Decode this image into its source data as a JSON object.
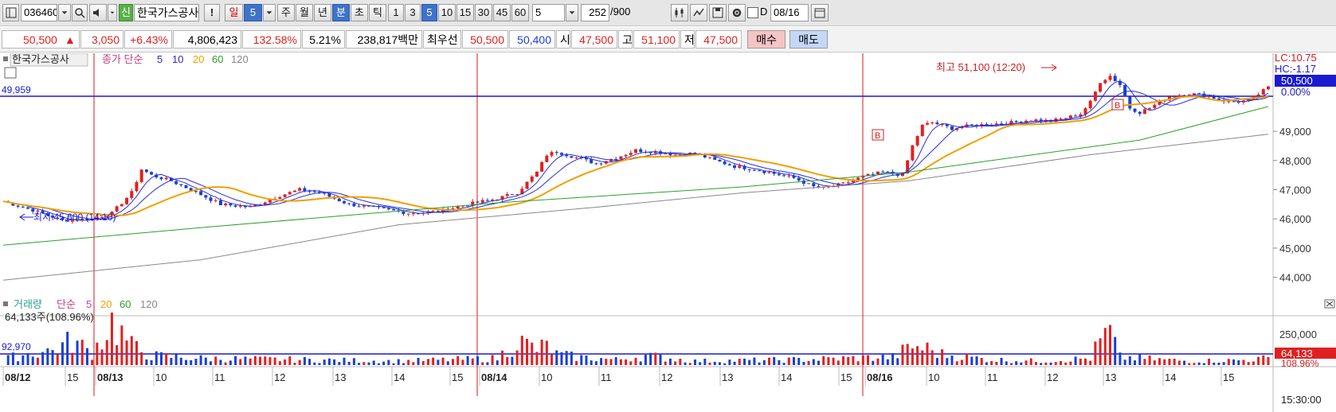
{
  "toolbar": {
    "code": "036460",
    "shin": "신",
    "name": "한국가스공사",
    "excl": "!",
    "period_day": "일",
    "period_day_n": "5",
    "period_week": "주",
    "period_month": "월",
    "period_year": "년",
    "period_min": "분",
    "period_sec": "초",
    "period_tick": "틱",
    "intervals": [
      "1",
      "3",
      "5",
      "10",
      "15",
      "30",
      "45",
      "60"
    ],
    "interval_value": "5",
    "count": "252",
    "count_max": "/900",
    "date_label": "D",
    "date_value": "08/16"
  },
  "quote": {
    "price": "50,500",
    "arrow": "▲",
    "change": "3,050",
    "change_pct": "+6.43%",
    "volume": "4,806,423",
    "vol_ratio": "132.58%",
    "turnover": "5.21%",
    "amount": "238,817백만",
    "best_label": "최우선",
    "ask": "50,500",
    "bid": "50,400",
    "open_label": "시",
    "open": "47,500",
    "high_label": "고",
    "high": "51,100",
    "low_label": "저",
    "low": "47,500",
    "buy_label": "매수",
    "sell_label": "매도"
  },
  "price_legend": {
    "name": "한국가스공사",
    "close_ma": "종가 단순",
    "periods": [
      "5",
      "10",
      "20",
      "60",
      "120"
    ],
    "colors": [
      "#2a2fd6",
      "#2a2fd6",
      "#f0a000",
      "#2aa02a",
      "#888888"
    ]
  },
  "volume_legend": {
    "name": "거래량",
    "ma": "단순",
    "periods": [
      "5",
      "20",
      "60",
      "120"
    ],
    "value_text": "64,133주(108.96%)",
    "ref_value": "92,970"
  },
  "annotations": {
    "high_text": "최고 51,100 (12:20)",
    "low_text": "최저 45,600 (14:10)",
    "ref_price": "49,959",
    "signal_b": "B"
  },
  "right_panel": {
    "lc": "LC:10.75",
    "hc": "HC:-1.17",
    "price_tag": "50,500",
    "pct_tag": "0.00%",
    "vol_tag": "64,133",
    "vol_pct_tag": "108.96%",
    "time_label": "15:30:00"
  },
  "chart_data": {
    "type": "candlestick",
    "price_ticks": [
      "49,000",
      "48,000",
      "47,000",
      "46,000",
      "45,000",
      "44,000"
    ],
    "volume_ticks": [
      "250,000"
    ],
    "x_labels": [
      "08/12",
      "15",
      "08/13",
      "10",
      "11",
      "12",
      "13",
      "14",
      "15",
      "08/14",
      "10",
      "11",
      "12",
      "13",
      "14",
      "15",
      "08/16",
      "10",
      "11",
      "12",
      "13",
      "14",
      "15"
    ],
    "x_label_date_flags": [
      true,
      false,
      true,
      false,
      false,
      false,
      false,
      false,
      false,
      true,
      false,
      false,
      false,
      false,
      false,
      false,
      true,
      false,
      false,
      false,
      false,
      false,
      false
    ],
    "ylim": [
      43500,
      51400
    ],
    "series": [
      {
        "name": "5",
        "color": "#2a2fd6"
      },
      {
        "name": "10",
        "color": "#2a2fd6"
      },
      {
        "name": "20",
        "color": "#f0a000"
      },
      {
        "name": "60",
        "color": "#2aa02a"
      },
      {
        "name": "120",
        "color": "#888888"
      }
    ],
    "close_path": [
      [
        0,
        46600
      ],
      [
        6,
        46300
      ],
      [
        12,
        45950
      ],
      [
        18,
        46000
      ],
      [
        22,
        46200
      ],
      [
        26,
        46900
      ],
      [
        28,
        47700
      ],
      [
        30,
        47500
      ],
      [
        34,
        47300
      ],
      [
        38,
        47000
      ],
      [
        44,
        46500
      ],
      [
        50,
        46400
      ],
      [
        56,
        46800
      ],
      [
        60,
        47000
      ],
      [
        64,
        46900
      ],
      [
        70,
        46500
      ],
      [
        76,
        46350
      ],
      [
        82,
        46200
      ],
      [
        88,
        46250
      ],
      [
        94,
        46500
      ],
      [
        100,
        46700
      ],
      [
        104,
        46900
      ],
      [
        108,
        47600
      ],
      [
        110,
        48200
      ],
      [
        112,
        48300
      ],
      [
        116,
        48100
      ],
      [
        120,
        47900
      ],
      [
        124,
        48100
      ],
      [
        128,
        48350
      ],
      [
        132,
        48300
      ],
      [
        136,
        48200
      ],
      [
        140,
        48250
      ],
      [
        144,
        48000
      ],
      [
        148,
        47800
      ],
      [
        152,
        47700
      ],
      [
        156,
        47550
      ],
      [
        160,
        47400
      ],
      [
        164,
        47100
      ],
      [
        166,
        47050
      ],
      [
        170,
        47200
      ],
      [
        174,
        47450
      ],
      [
        178,
        47600
      ],
      [
        182,
        47500
      ],
      [
        184,
        48500
      ],
      [
        186,
        49200
      ],
      [
        188,
        49300
      ],
      [
        192,
        49100
      ],
      [
        196,
        49200
      ],
      [
        200,
        49250
      ],
      [
        204,
        49300
      ],
      [
        208,
        49400
      ],
      [
        212,
        49350
      ],
      [
        216,
        49500
      ],
      [
        218,
        49600
      ],
      [
        220,
        50000
      ],
      [
        222,
        50700
      ],
      [
        224,
        50900
      ],
      [
        226,
        50600
      ],
      [
        228,
        49800
      ],
      [
        230,
        49650
      ],
      [
        232,
        49800
      ],
      [
        236,
        50200
      ],
      [
        240,
        50300
      ],
      [
        244,
        50200
      ],
      [
        248,
        50000
      ],
      [
        252,
        50050
      ],
      [
        256,
        50500
      ]
    ],
    "volume_series": [
      [
        0,
        20
      ],
      [
        4,
        40
      ],
      [
        10,
        55
      ],
      [
        14,
        90
      ],
      [
        18,
        45
      ],
      [
        22,
        160
      ],
      [
        26,
        70
      ],
      [
        30,
        35
      ],
      [
        40,
        25
      ],
      [
        60,
        20
      ],
      [
        80,
        15
      ],
      [
        100,
        25
      ],
      [
        104,
        90
      ],
      [
        108,
        60
      ],
      [
        110,
        70
      ],
      [
        112,
        40
      ],
      [
        116,
        30
      ],
      [
        124,
        20
      ],
      [
        130,
        35
      ],
      [
        140,
        15
      ],
      [
        160,
        20
      ],
      [
        180,
        30
      ],
      [
        184,
        70
      ],
      [
        186,
        65
      ],
      [
        188,
        55
      ],
      [
        190,
        40
      ],
      [
        200,
        20
      ],
      [
        210,
        15
      ],
      [
        220,
        25
      ],
      [
        222,
        90
      ],
      [
        224,
        120
      ],
      [
        226,
        30
      ],
      [
        230,
        25
      ],
      [
        240,
        15
      ],
      [
        250,
        18
      ],
      [
        256,
        25
      ]
    ]
  }
}
